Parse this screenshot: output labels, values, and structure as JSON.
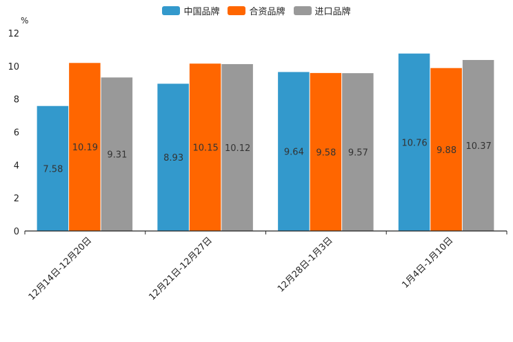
{
  "chart_data": {
    "type": "bar",
    "title": "",
    "ylabel": "%",
    "xlabel": "",
    "ylim": [
      0,
      12
    ],
    "yticks": [
      0,
      2,
      4,
      6,
      8,
      10,
      12
    ],
    "categories": [
      "12月14日-12月20日",
      "12月21日-12月27日",
      "12月28日-1月3日",
      "1月4日-1月10日"
    ],
    "series": [
      {
        "name": "中国品牌",
        "color": "#3399CC",
        "values": [
          7.58,
          8.93,
          9.64,
          10.76
        ],
        "labels": [
          "7.58",
          "8.93",
          "9.64",
          "10.76"
        ]
      },
      {
        "name": "合资品牌",
        "color": "#FF6600",
        "values": [
          10.19,
          10.15,
          9.58,
          9.88
        ],
        "labels": [
          "10.19",
          "10.15",
          "9.58",
          "9.88"
        ]
      },
      {
        "name": "进口品牌",
        "color": "#999999",
        "values": [
          9.31,
          10.12,
          9.57,
          10.37
        ],
        "labels": [
          "9.31",
          "10.12",
          "9.57",
          "10.37"
        ]
      }
    ]
  }
}
